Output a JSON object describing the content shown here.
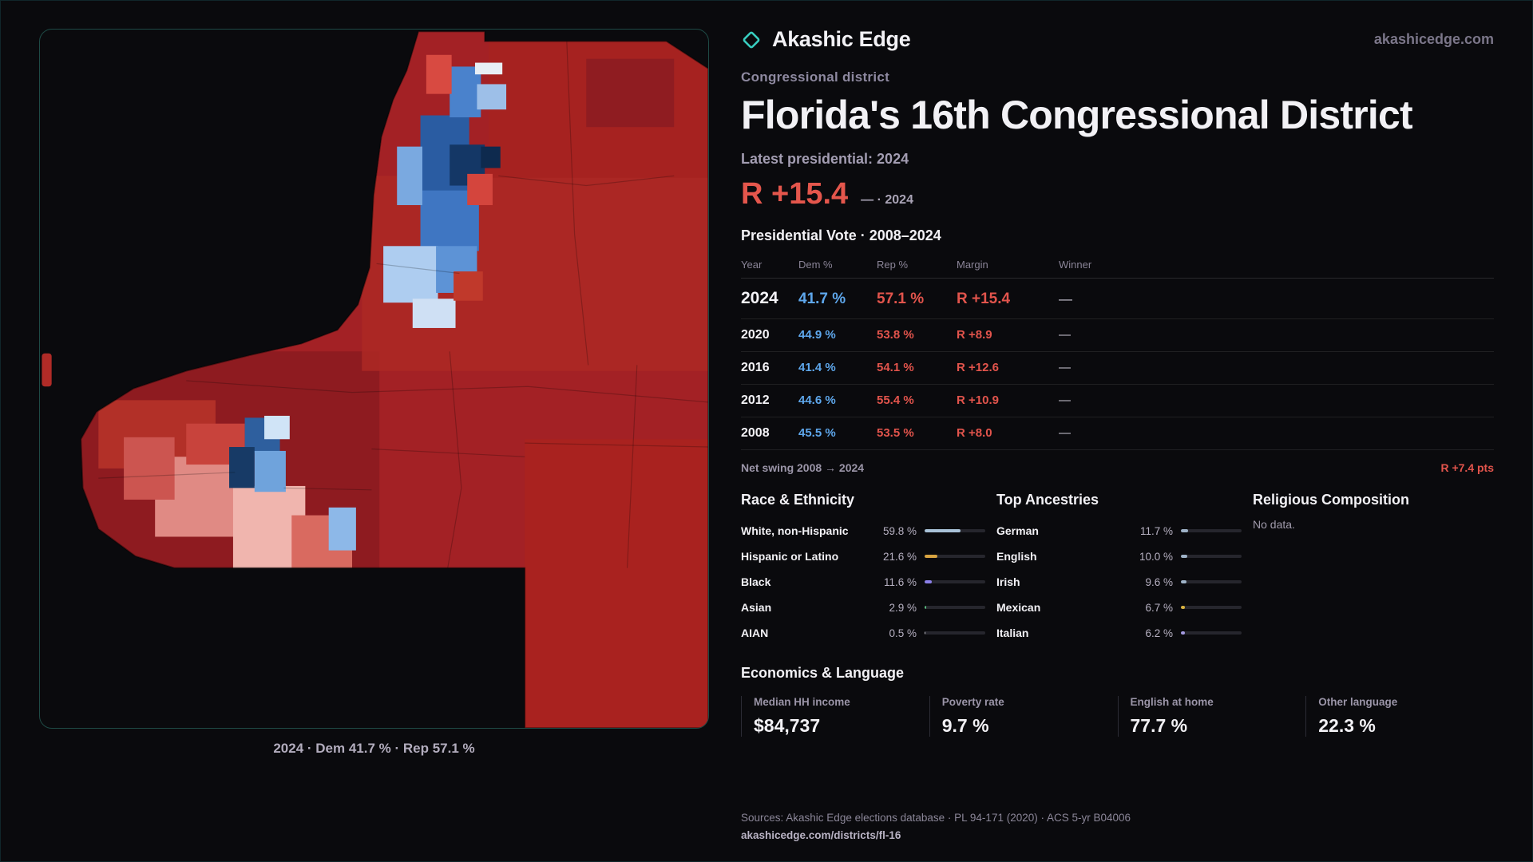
{
  "brand": {
    "name": "Akashic Edge",
    "domain": "akashicedge.com"
  },
  "header": {
    "kicker": "Congressional district",
    "title": "Florida's 16th Congressional District",
    "latest": "Latest presidential: 2024",
    "margin_value": "R +15.4",
    "margin_note": "— · 2024"
  },
  "vote_table": {
    "title": "Presidential Vote · 2008–2024",
    "columns": {
      "year": "Year",
      "dem": "Dem %",
      "rep": "Rep %",
      "margin": "Margin",
      "winner": "Winner"
    },
    "rows": [
      {
        "year": "2024",
        "dem": "41.7 %",
        "rep": "57.1 %",
        "margin": "R +15.4",
        "winner": "—"
      },
      {
        "year": "2020",
        "dem": "44.9 %",
        "rep": "53.8 %",
        "margin": "R +8.9",
        "winner": "—"
      },
      {
        "year": "2016",
        "dem": "41.4 %",
        "rep": "54.1 %",
        "margin": "R +12.6",
        "winner": "—"
      },
      {
        "year": "2012",
        "dem": "44.6 %",
        "rep": "55.4 %",
        "margin": "R +10.9",
        "winner": "—"
      },
      {
        "year": "2008",
        "dem": "45.5 %",
        "rep": "53.5 %",
        "margin": "R +8.0",
        "winner": "—"
      }
    ],
    "net_swing_label": "Net swing 2008 → 2024",
    "net_swing_value": "R +7.4 pts"
  },
  "race": {
    "title": "Race & Ethnicity",
    "rows": [
      {
        "label": "White, non-Hispanic",
        "value": "59.8 %",
        "pct": 59.8,
        "color": "#a9c2d8"
      },
      {
        "label": "Hispanic or Latino",
        "value": "21.6 %",
        "pct": 21.6,
        "color": "#d9a441"
      },
      {
        "label": "Black",
        "value": "11.6 %",
        "pct": 11.6,
        "color": "#8b7fe8"
      },
      {
        "label": "Asian",
        "value": "2.9 %",
        "pct": 2.9,
        "color": "#58b87c"
      },
      {
        "label": "AIAN",
        "value": "0.5 %",
        "pct": 0.5,
        "color": "#c9c9cf"
      }
    ]
  },
  "ancestries": {
    "title": "Top Ancestries",
    "rows": [
      {
        "label": "German",
        "value": "11.7 %",
        "pct": 11.7,
        "color": "#9fb3c8"
      },
      {
        "label": "English",
        "value": "10.0 %",
        "pct": 10.0,
        "color": "#9fb3c8"
      },
      {
        "label": "Irish",
        "value": "9.6 %",
        "pct": 9.6,
        "color": "#9fb3c8"
      },
      {
        "label": "Mexican",
        "value": "6.7 %",
        "pct": 6.7,
        "color": "#d9b23f"
      },
      {
        "label": "Italian",
        "value": "6.2 %",
        "pct": 6.2,
        "color": "#a49ae0"
      }
    ]
  },
  "religion": {
    "title": "Religious Composition",
    "empty": "No data."
  },
  "economics": {
    "title": "Economics & Language",
    "stats": [
      {
        "label": "Median HH income",
        "value": "$84,737"
      },
      {
        "label": "Poverty rate",
        "value": "9.7 %"
      },
      {
        "label": "English at home",
        "value": "77.7 %"
      },
      {
        "label": "Other language",
        "value": "22.3 %"
      }
    ]
  },
  "map": {
    "caption": "2024 · Dem 41.7 % · Rep 57.1 %"
  },
  "footer": {
    "sources": "Sources: Akashic Edge elections database · PL 94-171 (2020) · ACS 5-yr B04006",
    "link": "akashicedge.com/districts/fl-16"
  }
}
